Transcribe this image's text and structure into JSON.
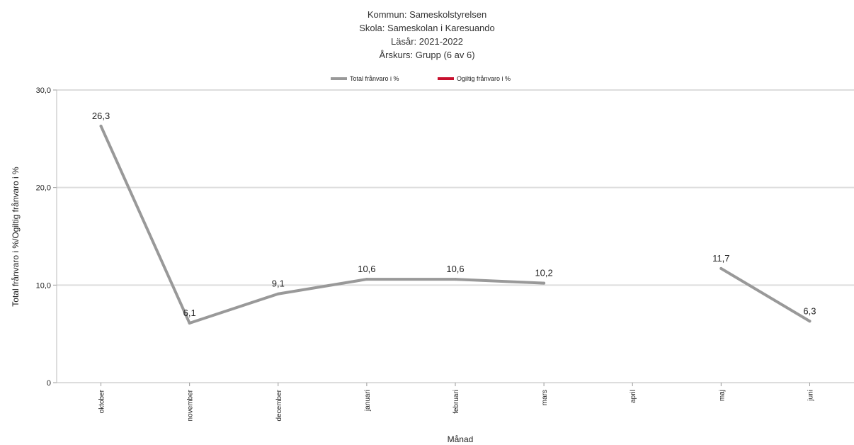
{
  "chart_data": {
    "type": "line",
    "title_lines": [
      "Kommun: Sameskolstyrelsen",
      "Skola: Sameskolan i Karesuando",
      "Läsår: 2021-2022",
      "Årskurs: Grupp (6 av 6)"
    ],
    "xlabel": "Månad",
    "ylabel": "Total frånvaro i %/Ogiltig frånvaro i %",
    "categories": [
      "oktober",
      "november",
      "december",
      "januari",
      "februari",
      "mars",
      "april",
      "maj",
      "juni"
    ],
    "ylim": [
      0,
      30
    ],
    "y_ticks": [
      0,
      10,
      20,
      30
    ],
    "y_tick_labels": [
      "0",
      "10,0",
      "20,0",
      "30,0"
    ],
    "grid": true,
    "legend_position": "top",
    "series": [
      {
        "name": "Total frånvaro i %",
        "color": "#999999",
        "values": [
          26.3,
          6.1,
          9.1,
          10.6,
          10.6,
          10.2,
          null,
          11.7,
          6.3
        ],
        "labels": [
          "26,3",
          "6,1",
          "9,1",
          "10,6",
          "10,6",
          "10,2",
          null,
          "11,7",
          "6,3"
        ]
      },
      {
        "name": "Ogiltig frånvaro i %",
        "color": "#c8102e",
        "values": [
          null,
          null,
          null,
          null,
          null,
          null,
          null,
          null,
          null
        ],
        "labels": [
          null,
          null,
          null,
          null,
          null,
          null,
          null,
          null,
          null
        ]
      }
    ]
  }
}
